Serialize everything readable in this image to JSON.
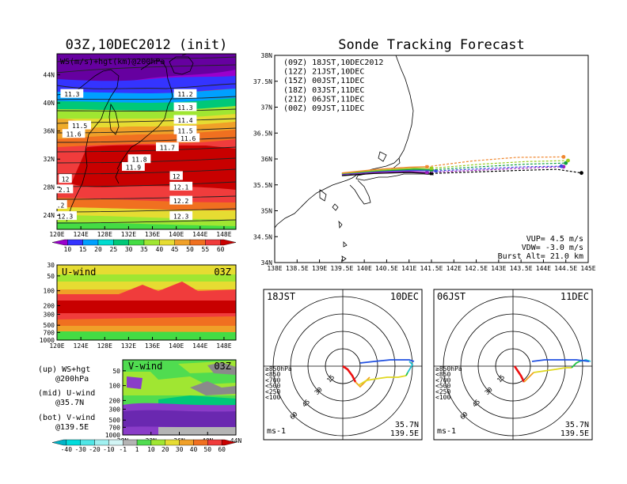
{
  "titles": {
    "left": "03Z,10DEC2012 (init)",
    "right": "Sonde Tracking Forecast"
  },
  "colors": {
    "run_09": "#000000",
    "run_12": "#a020c0",
    "run_15": "#3c4ce0",
    "run_18": "#10a040",
    "run_21": "#98cc20",
    "run_00": "#f08830",
    "hodo_red": "#ee1010",
    "hodo_orange": "#f0a020",
    "hodo_yellow": "#e0d820",
    "hodo_green": "#20c040",
    "hodo_cyan": "#20c0d0",
    "hodo_blue": "#2050e0"
  },
  "chart_data": [
    {
      "type": "heatmap",
      "name": "upper_map",
      "title": "WS(m/s)+hgt(km)@200hPa",
      "xticks": [
        "120E",
        "124E",
        "128E",
        "132E",
        "136E",
        "140E",
        "144E",
        "148E"
      ],
      "yticks": [
        "24N",
        "28N",
        "32N",
        "36N",
        "40N",
        "44N"
      ],
      "xlim": [
        120,
        150
      ],
      "ylim": [
        22,
        47
      ],
      "contour_labels": [
        {
          "text": "11.3",
          "lon": 122.5,
          "lat": 41.3
        },
        {
          "text": "11.2",
          "lon": 141.5,
          "lat": 41.3
        },
        {
          "text": "11.3",
          "lon": 141.5,
          "lat": 39.4
        },
        {
          "text": "11.5",
          "lon": 123.8,
          "lat": 36.8
        },
        {
          "text": "11.4",
          "lon": 141.5,
          "lat": 37.6
        },
        {
          "text": "11.6",
          "lon": 122.8,
          "lat": 35.6
        },
        {
          "text": "11.5",
          "lon": 141.5,
          "lat": 36.1
        },
        {
          "text": "11.6",
          "lon": 142.0,
          "lat": 35.0
        },
        {
          "text": "11.7",
          "lon": 138.5,
          "lat": 33.7
        },
        {
          "text": "11.8",
          "lon": 133.8,
          "lat": 32.0
        },
        {
          "text": "11.9",
          "lon": 132.8,
          "lat": 30.9
        },
        {
          "text": "12",
          "lon": 121.4,
          "lat": 29.2
        },
        {
          "text": "12",
          "lon": 140.0,
          "lat": 29.6
        },
        {
          "text": "2.1",
          "lon": 121.2,
          "lat": 27.7
        },
        {
          "text": "12.1",
          "lon": 140.8,
          "lat": 28.1
        },
        {
          "text": "12.2",
          "lon": 140.8,
          "lat": 26.1
        },
        {
          "text": ".2",
          "lon": 120.6,
          "lat": 25.5
        },
        {
          "text": "12.3",
          "lon": 121.4,
          "lat": 23.9
        },
        {
          "text": "12.3",
          "lon": 140.8,
          "lat": 23.9
        }
      ]
    },
    {
      "type": "heatmap",
      "name": "u_wind",
      "title": "U-wind",
      "time": "03Z",
      "xticks": [
        "120E",
        "124E",
        "128E",
        "132E",
        "136E",
        "140E",
        "144E",
        "148E"
      ],
      "yticks": [
        "30",
        "50",
        "100",
        "200",
        "300",
        "500",
        "700",
        "1000"
      ]
    },
    {
      "type": "heatmap",
      "name": "v_wind",
      "title": "V-wind",
      "time": "03Z",
      "xticks": [
        "28N",
        "32N",
        "36N",
        "40N",
        "44N"
      ],
      "yticks": [
        "50",
        "100",
        "200",
        "300",
        "500",
        "700",
        "1000"
      ]
    },
    {
      "type": "line",
      "name": "trajectory",
      "title": "Sonde Tracking Forecast",
      "xlim": [
        138,
        145
      ],
      "ylim": [
        34,
        38
      ],
      "xticks": [
        "138E",
        "138.5E",
        "139E",
        "139.5E",
        "140E",
        "140.5E",
        "141E",
        "141.5E",
        "142E",
        "142.5E",
        "143E",
        "143.5E",
        "144E",
        "144.5E",
        "145E"
      ],
      "yticks": [
        "34N",
        "34.5N",
        "35N",
        "35.5N",
        "36N",
        "36.5N",
        "37N",
        "37.5N",
        "38N"
      ],
      "series": [
        {
          "name": "(09Z) 18JST,10DEC2012",
          "color_key": "run_09",
          "end": [
            144.85,
            35.73
          ],
          "solid": [
            [
              139.5,
              35.68
            ],
            [
              140.2,
              35.72
            ],
            [
              141.0,
              35.74
            ],
            [
              141.5,
              35.72
            ]
          ],
          "dashed": [
            [
              141.5,
              35.72
            ],
            [
              142.5,
              35.75
            ],
            [
              143.5,
              35.78
            ],
            [
              144.3,
              35.8
            ],
            [
              144.85,
              35.73
            ]
          ]
        },
        {
          "name": "(12Z) 21JST,10DEC",
          "color_key": "run_12",
          "end": [
            144.45,
            35.85
          ],
          "solid": [
            [
              139.5,
              35.7
            ],
            [
              140.2,
              35.74
            ],
            [
              141.0,
              35.76
            ],
            [
              141.4,
              35.74
            ]
          ],
          "dashed": [
            [
              141.4,
              35.74
            ],
            [
              142.5,
              35.78
            ],
            [
              143.5,
              35.82
            ],
            [
              144.45,
              35.85
            ]
          ]
        },
        {
          "name": "(15Z) 00JST,11DEC",
          "color_key": "run_15",
          "end": [
            144.4,
            35.86
          ],
          "solid": [
            [
              139.5,
              35.71
            ],
            [
              140.3,
              35.76
            ],
            [
              141.1,
              35.78
            ],
            [
              141.6,
              35.77
            ]
          ],
          "dashed": [
            [
              141.6,
              35.77
            ],
            [
              142.6,
              35.81
            ],
            [
              143.6,
              35.85
            ],
            [
              144.4,
              35.86
            ]
          ]
        },
        {
          "name": "(18Z) 03JST,11DEC",
          "color_key": "run_18",
          "end": [
            144.5,
            35.92
          ],
          "solid": [
            [
              139.5,
              35.72
            ],
            [
              140.3,
              35.77
            ],
            [
              141.1,
              35.8
            ],
            [
              141.5,
              35.79
            ]
          ],
          "dashed": [
            [
              141.5,
              35.79
            ],
            [
              142.6,
              35.85
            ],
            [
              143.6,
              35.9
            ],
            [
              144.5,
              35.92
            ]
          ]
        },
        {
          "name": "(21Z) 06JST,11DEC",
          "color_key": "run_21",
          "end": [
            144.55,
            35.97
          ],
          "solid": [
            [
              139.5,
              35.72
            ],
            [
              140.3,
              35.78
            ],
            [
              141.1,
              35.82
            ],
            [
              141.5,
              35.82
            ]
          ],
          "dashed": [
            [
              141.5,
              35.82
            ],
            [
              142.6,
              35.9
            ],
            [
              143.6,
              35.95
            ],
            [
              144.55,
              35.97
            ]
          ]
        },
        {
          "name": "(00Z) 09JST,11DEC",
          "color_key": "run_00",
          "end": [
            144.45,
            36.04
          ],
          "solid": [
            [
              139.5,
              35.73
            ],
            [
              140.3,
              35.8
            ],
            [
              141.0,
              35.84
            ],
            [
              141.4,
              35.85
            ]
          ],
          "dashed": [
            [
              141.4,
              35.85
            ],
            [
              142.4,
              35.96
            ],
            [
              143.4,
              36.03
            ],
            [
              144.45,
              36.04
            ]
          ]
        }
      ],
      "annotations": {
        "vup": "VUP= 4.5 m/s",
        "vdw": "VDW= -3.0 m/s",
        "burst": "Burst Alt= 21.0 km"
      }
    },
    {
      "type": "line",
      "name": "hodograph_18jst",
      "title_left": "18JST",
      "title_right": "10DEC",
      "lat": "35.7N",
      "lon": "139.5E",
      "unit": "ms-1",
      "ring_labels": [
        "15",
        "30",
        "45",
        "60"
      ],
      "legend": [
        "≥850hPa",
        "<850",
        "<700",
        "<500",
        "<250",
        "<100"
      ]
    },
    {
      "type": "line",
      "name": "hodograph_06jst",
      "title_left": "06JST",
      "title_right": "11DEC",
      "lat": "35.7N",
      "lon": "139.5E",
      "unit": "ms-1",
      "ring_labels": [
        "15",
        "30",
        "45",
        "60"
      ],
      "legend": [
        "≥850hPa",
        "<850",
        "<700",
        "<500",
        "<250",
        "<100"
      ]
    }
  ],
  "colorbars": {
    "top": {
      "labels": [
        "10",
        "15",
        "20",
        "25",
        "30",
        "35",
        "40",
        "45",
        "50",
        "55",
        "60"
      ],
      "colors": [
        "#9a00cc",
        "#3434ff",
        "#00a0ff",
        "#00dcd0",
        "#00c878",
        "#44dc44",
        "#a0e632",
        "#e6dc32",
        "#f0a028",
        "#f07020",
        "#f03c3c",
        "#c80000"
      ]
    },
    "bottom": {
      "labels": [
        "-40",
        "-30",
        "-20",
        "-10",
        "-1",
        "1",
        "10",
        "20",
        "30",
        "40",
        "50",
        "60"
      ],
      "colors": [
        "#00b4c8",
        "#00dcdc",
        "#50e6e6",
        "#a0f0f0",
        "#d2f5f5",
        "#b4b4b4",
        "#50dc50",
        "#a0e632",
        "#e6dc32",
        "#f0a028",
        "#f07020",
        "#f03c3c",
        "#c80000"
      ]
    }
  },
  "legend_text": {
    "up1": "(up) WS+hgt",
    "up2": "@200hPa",
    "mid1": "(mid) U-wind",
    "mid2": "@35.7N",
    "bot1": "(bot) V-wind",
    "bot2": "@139.5E"
  }
}
